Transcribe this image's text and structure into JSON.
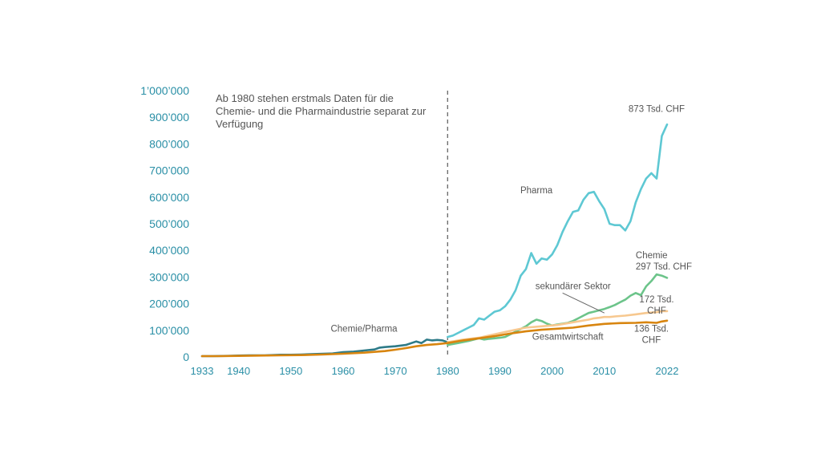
{
  "chart_data": {
    "type": "line",
    "xlim": [
      1933,
      2022
    ],
    "ylim": [
      0,
      1000000
    ],
    "grid": false,
    "y_ticks": [
      {
        "value": 0,
        "label": "0"
      },
      {
        "value": 100000,
        "label": "100’000"
      },
      {
        "value": 200000,
        "label": "200’000"
      },
      {
        "value": 300000,
        "label": "300’000"
      },
      {
        "value": 400000,
        "label": "400’000"
      },
      {
        "value": 500000,
        "label": "500’000"
      },
      {
        "value": 600000,
        "label": "600’000"
      },
      {
        "value": 700000,
        "label": "700’000"
      },
      {
        "value": 800000,
        "label": "800’000"
      },
      {
        "value": 900000,
        "label": "900’000"
      },
      {
        "value": 1000000,
        "label": "1’000’000"
      }
    ],
    "x_ticks": [
      {
        "value": 1933,
        "label": "1933"
      },
      {
        "value": 1940,
        "label": "1940"
      },
      {
        "value": 1950,
        "label": "1950"
      },
      {
        "value": 1960,
        "label": "1960"
      },
      {
        "value": 1970,
        "label": "1970"
      },
      {
        "value": 1980,
        "label": "1980"
      },
      {
        "value": 1990,
        "label": "1990"
      },
      {
        "value": 2000,
        "label": "2000"
      },
      {
        "value": 2010,
        "label": "2010"
      },
      {
        "value": 2022,
        "label": "2022"
      }
    ],
    "reference_line": {
      "x": 1980,
      "text_lines": [
        "Ab 1980 stehen erstmals Daten für die",
        "Chemie- und die Pharmaindustrie separat zur",
        "Verfügung"
      ]
    },
    "series": [
      {
        "name": "Chemie/Pharma",
        "color": "#2e7b88",
        "x": [
          1933,
          1935,
          1938,
          1940,
          1942,
          1945,
          1948,
          1950,
          1952,
          1955,
          1958,
          1960,
          1962,
          1964,
          1966,
          1967,
          1968,
          1970,
          1972,
          1974,
          1975,
          1976,
          1977,
          1978,
          1979,
          1980
        ],
        "y": [
          3000,
          3000,
          4000,
          5000,
          6000,
          6000,
          8000,
          8000,
          9000,
          11000,
          13000,
          18000,
          20000,
          24000,
          28000,
          35000,
          37000,
          40000,
          45000,
          58000,
          52000,
          65000,
          62000,
          64000,
          62000,
          55000
        ]
      },
      {
        "name": "Pharma",
        "color": "#5ec8d3",
        "x": [
          1980,
          1981,
          1982,
          1983,
          1984,
          1985,
          1986,
          1987,
          1988,
          1989,
          1990,
          1991,
          1992,
          1993,
          1994,
          1995,
          1996,
          1997,
          1998,
          1999,
          2000,
          2001,
          2002,
          2003,
          2004,
          2005,
          2006,
          2007,
          2008,
          2009,
          2010,
          2011,
          2012,
          2013,
          2014,
          2015,
          2016,
          2017,
          2018,
          2019,
          2020,
          2021,
          2022
        ],
        "y": [
          75000,
          80000,
          90000,
          100000,
          110000,
          120000,
          145000,
          140000,
          155000,
          170000,
          175000,
          190000,
          215000,
          250000,
          305000,
          330000,
          390000,
          350000,
          370000,
          365000,
          385000,
          420000,
          470000,
          510000,
          545000,
          550000,
          590000,
          615000,
          620000,
          585000,
          555000,
          500000,
          495000,
          495000,
          475000,
          510000,
          580000,
          630000,
          670000,
          690000,
          670000,
          830000,
          873000
        ]
      },
      {
        "name": "Chemie",
        "color": "#6cc48a",
        "x": [
          1980,
          1982,
          1984,
          1986,
          1987,
          1988,
          1990,
          1991,
          1992,
          1993,
          1994,
          1995,
          1996,
          1997,
          1998,
          1999,
          2000,
          2001,
          2002,
          2003,
          2004,
          2005,
          2006,
          2007,
          2008,
          2009,
          2010,
          2011,
          2012,
          2013,
          2014,
          2015,
          2016,
          2017,
          2018,
          2019,
          2020,
          2021,
          2022
        ],
        "y": [
          45000,
          52000,
          60000,
          70000,
          65000,
          68000,
          72000,
          75000,
          85000,
          95000,
          105000,
          115000,
          130000,
          140000,
          135000,
          125000,
          118000,
          122000,
          125000,
          128000,
          135000,
          145000,
          155000,
          165000,
          170000,
          175000,
          180000,
          187000,
          195000,
          205000,
          215000,
          230000,
          240000,
          232000,
          265000,
          285000,
          310000,
          305000,
          297000
        ]
      },
      {
        "name": "sekundärer Sektor",
        "color": "#f7c88f",
        "x": [
          1980,
          1983,
          1986,
          1989,
          1992,
          1995,
          1998,
          2001,
          2004,
          2007,
          2008,
          2009,
          2010,
          2011,
          2012,
          2014,
          2016,
          2018,
          2020,
          2021,
          2022
        ],
        "y": [
          55000,
          65000,
          72000,
          85000,
          98000,
          110000,
          115000,
          120000,
          130000,
          140000,
          145000,
          147000,
          150000,
          150000,
          152000,
          155000,
          160000,
          165000,
          168000,
          172000,
          172000
        ]
      },
      {
        "name": "Gesamtwirtschaft",
        "color": "#d8850f",
        "x": [
          1933,
          1936,
          1940,
          1944,
          1948,
          1952,
          1956,
          1960,
          1964,
          1968,
          1970,
          1972,
          1974,
          1976,
          1978,
          1980,
          1983,
          1986,
          1989,
          1992,
          1995,
          1998,
          2001,
          2004,
          2007,
          2010,
          2013,
          2016,
          2018,
          2020,
          2021,
          2022
        ],
        "y": [
          3000,
          3000,
          4000,
          5000,
          6000,
          7000,
          9000,
          12000,
          16000,
          22000,
          27000,
          33000,
          40000,
          45000,
          48000,
          52000,
          62000,
          70000,
          78000,
          88000,
          96000,
          102000,
          106000,
          110000,
          118000,
          124000,
          127000,
          128000,
          130000,
          128000,
          133000,
          136000
        ]
      }
    ],
    "labels": [
      {
        "series": "Chemie/Pharma",
        "text_lines": [
          "Chemie/Pharma"
        ],
        "anchor_x": 1964,
        "anchor_y": 95000,
        "align": "middle"
      },
      {
        "series": "Pharma",
        "text_lines": [
          "Pharma"
        ],
        "anchor_x": 1997,
        "anchor_y": 615000,
        "align": "middle"
      },
      {
        "series": "Pharma",
        "text_lines": [
          "873 Tsd. CHF"
        ],
        "anchor_x": 2020,
        "anchor_y": 920000,
        "align": "middle"
      },
      {
        "series": "Chemie",
        "text_lines": [
          "Chemie",
          "297 Tsd. CHF"
        ],
        "anchor_x": 2016,
        "anchor_y": 370000,
        "align": "start"
      },
      {
        "series": "sekundärer Sektor",
        "text_lines": [
          "sekundärer Sektor"
        ],
        "anchor_x": 2004,
        "anchor_y": 255000,
        "align": "middle"
      },
      {
        "series": "sekundärer Sektor",
        "text_lines": [
          "172 Tsd.",
          "CHF"
        ],
        "anchor_x": 2020,
        "anchor_y": 205000,
        "align": "middle"
      },
      {
        "series": "Gesamtwirtschaft",
        "text_lines": [
          "Gesamtwirtschaft"
        ],
        "anchor_x": 2003,
        "anchor_y": 65000,
        "align": "middle"
      },
      {
        "series": "Gesamtwirtschaft",
        "text_lines": [
          "136 Tsd.",
          "CHF"
        ],
        "anchor_x": 2019,
        "anchor_y": 95000,
        "align": "middle"
      }
    ],
    "leader_line": {
      "from_x": 2002,
      "from_y": 240000,
      "to_x": 2010,
      "to_y": 165000
    }
  }
}
